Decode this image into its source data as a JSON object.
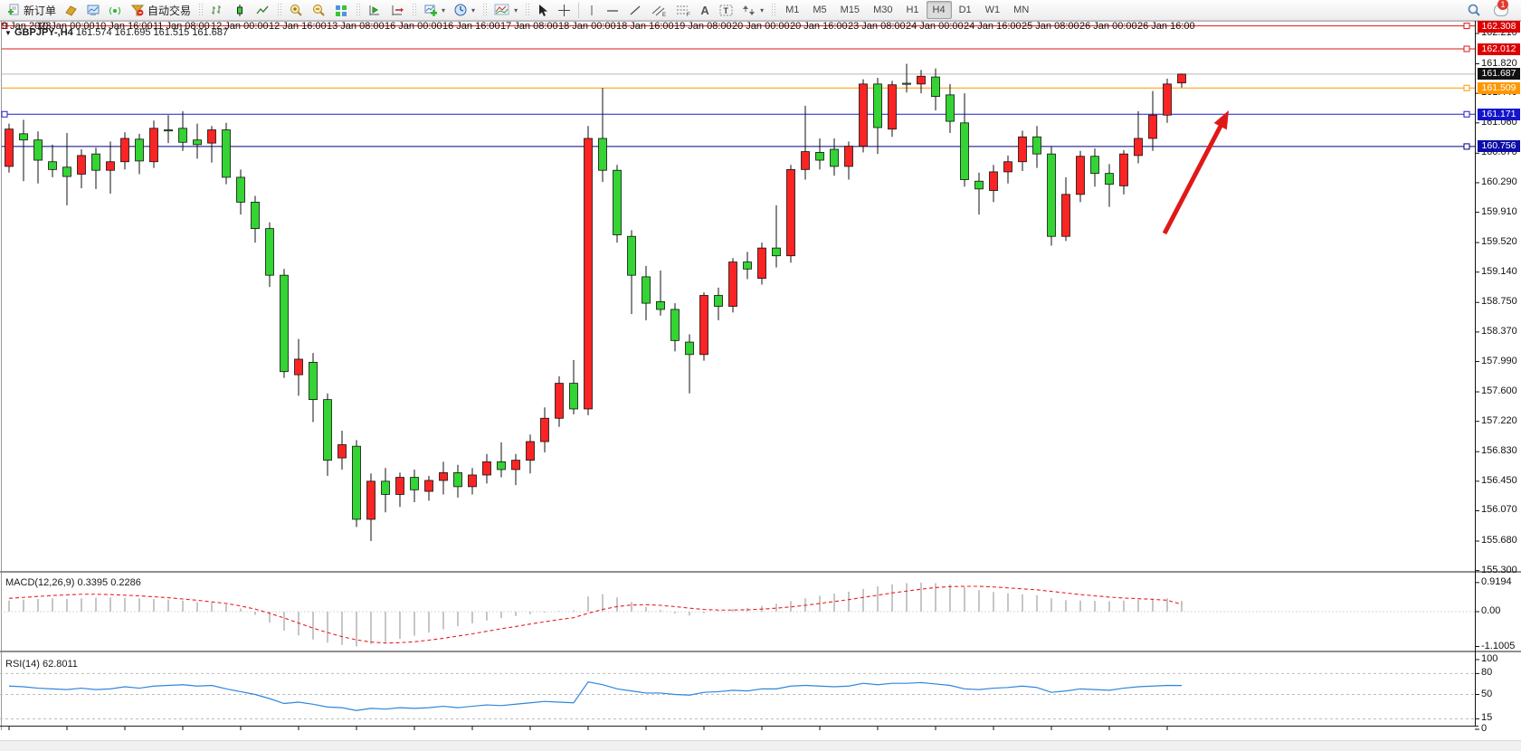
{
  "toolbar": {
    "new_order_label": "新订单",
    "auto_trading_label": "自动交易",
    "timeframes": [
      "M1",
      "M5",
      "M15",
      "M30",
      "H1",
      "H4",
      "D1",
      "W1",
      "MN"
    ],
    "active_timeframe": "H4",
    "notification_count": "1",
    "icons": [
      "new-order-icon",
      "history-center-icon",
      "market-watch-icon",
      "signals-icon",
      "auto-trading-icon",
      "bar-chart-icon",
      "candlestick-chart-icon",
      "line-chart-icon",
      "zoom-in-icon",
      "zoom-out-icon",
      "tile-windows-icon",
      "chart-shift-icon",
      "auto-scroll-icon",
      "new-chart-icon",
      "profiles-icon",
      "indicators-icon",
      "cursor-icon",
      "crosshair-icon",
      "vertical-line-icon",
      "horizontal-line-icon",
      "trendline-icon",
      "channel-icon",
      "fibonacci-icon",
      "text-icon",
      "text-label-icon",
      "arrow-objects-icon",
      "search-icon",
      "notifications-icon"
    ]
  },
  "chart": {
    "symbol_period": "GBPJPY-,H4",
    "ohlc": "161.574 161.695 161.515 161.687",
    "dropdown_icon": "▼"
  },
  "indicators": {
    "macd": {
      "label": "MACD(12,26,9)",
      "main": "0.3395",
      "signal": "0.2286"
    },
    "rsi": {
      "label": "RSI(14)",
      "value": "62.8011"
    }
  },
  "chart_data": {
    "type": "candlestick",
    "symbol": "GBPJPY-",
    "period": "H4",
    "current_price": 161.687,
    "colors": {
      "up": "#fb2424",
      "down": "#33d433",
      "wick": "#111111",
      "macd_hist": "#c6c6c6",
      "macd_signal": "#e82020",
      "rsi_line": "#2f86dd"
    },
    "price_ticks": [
      "162.210",
      "161.820",
      "161.440",
      "161.060",
      "160.670",
      "160.290",
      "159.910",
      "159.520",
      "159.140",
      "158.750",
      "158.370",
      "157.990",
      "157.600",
      "157.220",
      "156.830",
      "156.450",
      "156.070",
      "155.680",
      "155.300"
    ],
    "badges": [
      {
        "text": "162.308",
        "price": 162.308,
        "bg": "#dd0000"
      },
      {
        "text": "162.012",
        "price": 162.012,
        "bg": "#dd0000"
      },
      {
        "text": "161.687",
        "price": 161.687,
        "bg": "#111111"
      },
      {
        "text": "161.509",
        "price": 161.509,
        "bg": "#ff9800"
      },
      {
        "text": "161.171",
        "price": 161.171,
        "bg": "#1414cc"
      },
      {
        "text": "160.756",
        "price": 160.756,
        "bg": "#0d0da8"
      }
    ],
    "levels": [
      {
        "name": "resistance-line-162308",
        "price": 162.308,
        "color": "#e11414",
        "handle_left": true,
        "handle_right": true
      },
      {
        "name": "resistance-line-162012",
        "price": 162.012,
        "color": "#e11414",
        "handle_left": false,
        "handle_right": true
      },
      {
        "name": "current-price-line",
        "price": 161.687,
        "color": "#b8b8b8",
        "handle_left": false,
        "handle_right": false
      },
      {
        "name": "pivot-line-161509",
        "price": 161.509,
        "color": "#ff9800",
        "handle_left": false,
        "handle_right": true
      },
      {
        "name": "support-line-161171",
        "price": 161.171,
        "color": "#1e1ec8",
        "handle_left": true,
        "handle_right": true
      },
      {
        "name": "support-line-160756",
        "price": 160.756,
        "color": "#00007d",
        "handle_left": false,
        "handle_right": true
      }
    ],
    "time_labels": [
      "9 Jan 2023",
      "10 Jan 00:00",
      "10 Jan 16:00",
      "11 Jan 08:00",
      "12 Jan 00:00",
      "12 Jan 16:00",
      "13 Jan 08:00",
      "16 Jan 00:00",
      "16 Jan 16:00",
      "17 Jan 08:00",
      "18 Jan 00:00",
      "18 Jan 16:00",
      "19 Jan 08:00",
      "20 Jan 00:00",
      "20 Jan 16:00",
      "23 Jan 08:00",
      "24 Jan 00:00",
      "24 Jan 16:00",
      "25 Jan 08:00",
      "26 Jan 00:00",
      "26 Jan 16:00"
    ],
    "candles": [
      [
        160.5,
        161.05,
        160.42,
        160.98
      ],
      [
        160.92,
        161.1,
        160.31,
        160.84
      ],
      [
        160.84,
        160.95,
        160.28,
        160.58
      ],
      [
        160.56,
        160.78,
        160.36,
        160.46
      ],
      [
        160.49,
        160.93,
        160.0,
        160.37
      ],
      [
        160.4,
        160.72,
        160.22,
        160.64
      ],
      [
        160.66,
        160.74,
        160.21,
        160.45
      ],
      [
        160.45,
        160.82,
        160.15,
        160.56
      ],
      [
        160.56,
        160.94,
        160.46,
        160.86
      ],
      [
        160.85,
        160.92,
        160.4,
        160.57
      ],
      [
        160.56,
        161.09,
        160.48,
        160.99
      ],
      [
        160.97,
        161.16,
        160.8,
        160.96
      ],
      [
        160.99,
        161.21,
        160.7,
        160.81
      ],
      [
        160.84,
        161.05,
        160.6,
        160.78
      ],
      [
        160.8,
        161.02,
        160.55,
        160.97
      ],
      [
        160.97,
        161.06,
        160.27,
        160.36
      ],
      [
        160.36,
        160.46,
        159.88,
        160.04
      ],
      [
        160.04,
        160.12,
        159.52,
        159.7
      ],
      [
        159.7,
        159.78,
        158.95,
        159.1
      ],
      [
        159.1,
        159.18,
        157.78,
        157.86
      ],
      [
        157.82,
        158.28,
        157.55,
        158.02
      ],
      [
        157.98,
        158.1,
        157.21,
        157.5
      ],
      [
        157.5,
        157.58,
        156.52,
        156.72
      ],
      [
        156.75,
        157.1,
        156.6,
        156.92
      ],
      [
        156.9,
        156.98,
        155.86,
        155.96
      ],
      [
        155.96,
        156.55,
        155.68,
        156.45
      ],
      [
        156.45,
        156.62,
        156.05,
        156.28
      ],
      [
        156.28,
        156.56,
        156.12,
        156.5
      ],
      [
        156.5,
        156.6,
        156.18,
        156.34
      ],
      [
        156.32,
        156.52,
        156.2,
        156.46
      ],
      [
        156.46,
        156.7,
        156.28,
        156.56
      ],
      [
        156.56,
        156.66,
        156.24,
        156.38
      ],
      [
        156.38,
        156.62,
        156.28,
        156.53
      ],
      [
        156.53,
        156.8,
        156.42,
        156.7
      ],
      [
        156.7,
        156.95,
        156.5,
        156.6
      ],
      [
        156.6,
        156.8,
        156.4,
        156.72
      ],
      [
        156.72,
        157.05,
        156.55,
        156.96
      ],
      [
        156.96,
        157.4,
        156.82,
        157.26
      ],
      [
        157.26,
        157.8,
        157.15,
        157.71
      ],
      [
        157.71,
        158.01,
        157.31,
        157.38
      ],
      [
        157.38,
        161.02,
        157.3,
        160.86
      ],
      [
        160.86,
        161.51,
        160.3,
        160.45
      ],
      [
        160.45,
        160.52,
        159.52,
        159.62
      ],
      [
        159.6,
        159.68,
        158.6,
        159.1
      ],
      [
        159.08,
        159.22,
        158.52,
        158.74
      ],
      [
        158.76,
        159.16,
        158.58,
        158.66
      ],
      [
        158.66,
        158.74,
        158.12,
        158.26
      ],
      [
        158.24,
        158.34,
        157.58,
        158.08
      ],
      [
        158.08,
        158.88,
        158.0,
        158.84
      ],
      [
        158.84,
        158.94,
        158.52,
        158.7
      ],
      [
        158.7,
        159.32,
        158.62,
        159.27
      ],
      [
        159.27,
        159.4,
        159.05,
        159.18
      ],
      [
        159.06,
        159.52,
        158.98,
        159.45
      ],
      [
        159.45,
        160.0,
        159.2,
        159.35
      ],
      [
        159.35,
        160.52,
        159.26,
        160.46
      ],
      [
        160.46,
        161.28,
        160.33,
        160.69
      ],
      [
        160.68,
        160.86,
        160.46,
        160.58
      ],
      [
        160.72,
        160.86,
        160.38,
        160.5
      ],
      [
        160.5,
        160.82,
        160.33,
        160.76
      ],
      [
        160.76,
        161.62,
        160.68,
        161.56
      ],
      [
        161.56,
        161.64,
        160.66,
        161.0
      ],
      [
        160.98,
        161.6,
        160.88,
        161.55
      ],
      [
        161.57,
        161.82,
        161.45,
        161.56
      ],
      [
        161.56,
        161.74,
        161.44,
        161.66
      ],
      [
        161.65,
        161.76,
        161.22,
        161.4
      ],
      [
        161.42,
        161.56,
        160.93,
        161.08
      ],
      [
        161.06,
        161.44,
        160.24,
        160.33
      ],
      [
        160.31,
        160.42,
        159.88,
        160.21
      ],
      [
        160.19,
        160.52,
        160.04,
        160.43
      ],
      [
        160.43,
        160.64,
        160.28,
        160.56
      ],
      [
        160.56,
        160.96,
        160.44,
        160.88
      ],
      [
        160.88,
        161.02,
        160.48,
        160.66
      ],
      [
        160.66,
        160.76,
        159.48,
        159.6
      ],
      [
        159.6,
        160.36,
        159.54,
        160.14
      ],
      [
        160.14,
        160.7,
        160.04,
        160.63
      ],
      [
        160.63,
        160.73,
        160.24,
        160.41
      ],
      [
        160.41,
        160.53,
        159.98,
        160.27
      ],
      [
        160.25,
        160.71,
        160.14,
        160.66
      ],
      [
        160.64,
        161.21,
        160.54,
        160.86
      ],
      [
        160.86,
        161.47,
        160.7,
        161.16
      ],
      [
        161.16,
        161.63,
        161.06,
        161.56
      ],
      [
        161.574,
        161.695,
        161.515,
        161.687
      ]
    ],
    "macd": {
      "axis": [
        {
          "text": "0.9194",
          "v": 0.9194
        },
        {
          "text": "0.00",
          "v": 0
        },
        {
          "text": "-1.1005",
          "v": -1.1005
        }
      ],
      "hist": [
        0.35,
        0.38,
        0.4,
        0.42,
        0.4,
        0.42,
        0.44,
        0.45,
        0.44,
        0.42,
        0.4,
        0.38,
        0.35,
        0.3,
        0.28,
        0.22,
        0.1,
        -0.1,
        -0.35,
        -0.6,
        -0.75,
        -0.88,
        -0.98,
        -1.05,
        -1.1,
        -1.02,
        -0.96,
        -0.86,
        -0.76,
        -0.66,
        -0.56,
        -0.46,
        -0.37,
        -0.28,
        -0.2,
        -0.14,
        -0.08,
        -0.03,
        0.02,
        0.04,
        0.48,
        0.55,
        0.45,
        0.3,
        0.15,
        0.05,
        -0.06,
        -0.12,
        -0.05,
        0.02,
        0.08,
        0.12,
        0.18,
        0.25,
        0.33,
        0.42,
        0.5,
        0.57,
        0.63,
        0.72,
        0.8,
        0.86,
        0.9,
        0.92,
        0.9,
        0.86,
        0.78,
        0.68,
        0.62,
        0.58,
        0.55,
        0.52,
        0.42,
        0.36,
        0.35,
        0.34,
        0.33,
        0.35,
        0.38,
        0.4,
        0.42,
        0.34
      ],
      "signal": [
        0.42,
        0.45,
        0.48,
        0.51,
        0.53,
        0.55,
        0.55,
        0.54,
        0.52,
        0.5,
        0.47,
        0.44,
        0.4,
        0.36,
        0.31,
        0.26,
        0.18,
        0.08,
        -0.05,
        -0.2,
        -0.36,
        -0.52,
        -0.66,
        -0.79,
        -0.89,
        -0.96,
        -0.99,
        -0.98,
        -0.95,
        -0.9,
        -0.84,
        -0.77,
        -0.7,
        -0.62,
        -0.54,
        -0.47,
        -0.39,
        -0.32,
        -0.25,
        -0.19,
        -0.05,
        0.07,
        0.16,
        0.21,
        0.22,
        0.2,
        0.16,
        0.11,
        0.07,
        0.05,
        0.05,
        0.06,
        0.08,
        0.11,
        0.15,
        0.2,
        0.26,
        0.32,
        0.38,
        0.45,
        0.52,
        0.59,
        0.65,
        0.71,
        0.76,
        0.79,
        0.8,
        0.8,
        0.78,
        0.75,
        0.72,
        0.69,
        0.64,
        0.59,
        0.54,
        0.5,
        0.46,
        0.43,
        0.41,
        0.39,
        0.36,
        0.23
      ]
    },
    "rsi": {
      "axis": [
        {
          "text": "100",
          "v": 100
        },
        {
          "text": "80",
          "v": 80
        },
        {
          "text": "50",
          "v": 50
        },
        {
          "text": "15",
          "v": 15
        },
        {
          "text": "0",
          "v": 0
        }
      ],
      "level_lines": [
        80,
        50,
        15
      ],
      "values": [
        62,
        61,
        59,
        58,
        57,
        59,
        57,
        58,
        61,
        59,
        62,
        63,
        64,
        62,
        63,
        58,
        54,
        50,
        44,
        37,
        39,
        36,
        32,
        31,
        27,
        30,
        29,
        31,
        30,
        31,
        33,
        31,
        33,
        35,
        34,
        36,
        38,
        40,
        39,
        38,
        68,
        64,
        58,
        55,
        52,
        52,
        50,
        49,
        53,
        54,
        56,
        55,
        58,
        58,
        62,
        63,
        62,
        61,
        62,
        66,
        64,
        66,
        66,
        67,
        65,
        63,
        58,
        57,
        59,
        60,
        62,
        60,
        53,
        55,
        58,
        57,
        56,
        59,
        61,
        62,
        63,
        62.8
      ]
    },
    "annotations": [
      {
        "type": "arrow",
        "name": "buy-signal-arrow",
        "color": "#e01818",
        "tail": [
          1287,
          258
        ],
        "tip": [
          1358,
          122
        ],
        "width": 5
      }
    ]
  }
}
